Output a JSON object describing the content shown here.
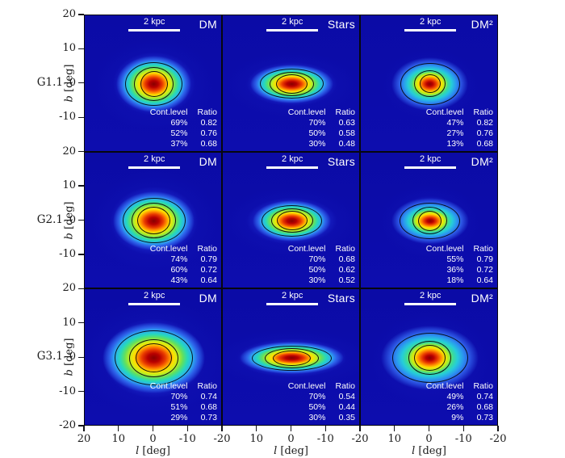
{
  "chart_data": {
    "type": "heatmap",
    "description": "3x3 grid of projected density maps (jet colormap) with iso-density contours for three simulated galaxies, comparing dark matter, stars and dark-matter-squared projections",
    "rows": [
      "G1.1",
      "G2.1",
      "G3.1"
    ],
    "columns": [
      "DM",
      "Stars",
      "DM²"
    ],
    "xlabel": "l [deg]",
    "ylabel": "b [deg]",
    "xlabel_var": "l",
    "xlabel_unit": "[deg]",
    "ylabel_var": "b",
    "ylabel_unit": "[deg]",
    "xlim": [
      20,
      -20
    ],
    "ylim": [
      -20,
      20
    ],
    "x_ticks": [
      "20",
      "10",
      "0",
      "-10",
      "-20"
    ],
    "y_ticks": [
      "20",
      "10",
      "0",
      "-10",
      "-20"
    ],
    "scale_bar": "2 kpc",
    "colormap": "jet",
    "grid": false,
    "table_headers": [
      "Cont.level",
      "Ratio"
    ],
    "panels": [
      {
        "row": "G1.1",
        "column": "DM",
        "contours": [
          {
            "level": "69%",
            "ratio": "0.82"
          },
          {
            "level": "52%",
            "ratio": "0.76"
          },
          {
            "level": "37%",
            "ratio": "0.68"
          }
        ]
      },
      {
        "row": "G1.1",
        "column": "Stars",
        "contours": [
          {
            "level": "70%",
            "ratio": "0.63"
          },
          {
            "level": "50%",
            "ratio": "0.58"
          },
          {
            "level": "30%",
            "ratio": "0.48"
          }
        ]
      },
      {
        "row": "G1.1",
        "column": "DM²",
        "contours": [
          {
            "level": "47%",
            "ratio": "0.82"
          },
          {
            "level": "27%",
            "ratio": "0.76"
          },
          {
            "level": "13%",
            "ratio": "0.68"
          }
        ]
      },
      {
        "row": "G2.1",
        "column": "DM",
        "contours": [
          {
            "level": "74%",
            "ratio": "0.79"
          },
          {
            "level": "60%",
            "ratio": "0.72"
          },
          {
            "level": "43%",
            "ratio": "0.64"
          }
        ]
      },
      {
        "row": "G2.1",
        "column": "Stars",
        "contours": [
          {
            "level": "70%",
            "ratio": "0.68"
          },
          {
            "level": "50%",
            "ratio": "0.62"
          },
          {
            "level": "30%",
            "ratio": "0.52"
          }
        ]
      },
      {
        "row": "G2.1",
        "column": "DM²",
        "contours": [
          {
            "level": "55%",
            "ratio": "0.79"
          },
          {
            "level": "36%",
            "ratio": "0.72"
          },
          {
            "level": "18%",
            "ratio": "0.64"
          }
        ]
      },
      {
        "row": "G3.1",
        "column": "DM",
        "contours": [
          {
            "level": "70%",
            "ratio": "0.74"
          },
          {
            "level": "51%",
            "ratio": "0.68"
          },
          {
            "level": "29%",
            "ratio": "0.73"
          }
        ]
      },
      {
        "row": "G3.1",
        "column": "Stars",
        "contours": [
          {
            "level": "70%",
            "ratio": "0.54"
          },
          {
            "level": "50%",
            "ratio": "0.44"
          },
          {
            "level": "30%",
            "ratio": "0.35"
          }
        ]
      },
      {
        "row": "G3.1",
        "column": "DM²",
        "contours": [
          {
            "level": "49%",
            "ratio": "0.74"
          },
          {
            "level": "26%",
            "ratio": "0.68"
          },
          {
            "level": "9%",
            "ratio": "0.73"
          }
        ]
      }
    ],
    "colors": {
      "panel_background": "#0d0daa",
      "contour_line": "#000000",
      "scale_bar": "#ffffff",
      "panel_text": "#ffffff",
      "axis_text": "#1c1c1c",
      "hot_center": "#870000",
      "warm_ring": "#ffdf00",
      "cool_ring": "#25cdd9"
    }
  }
}
